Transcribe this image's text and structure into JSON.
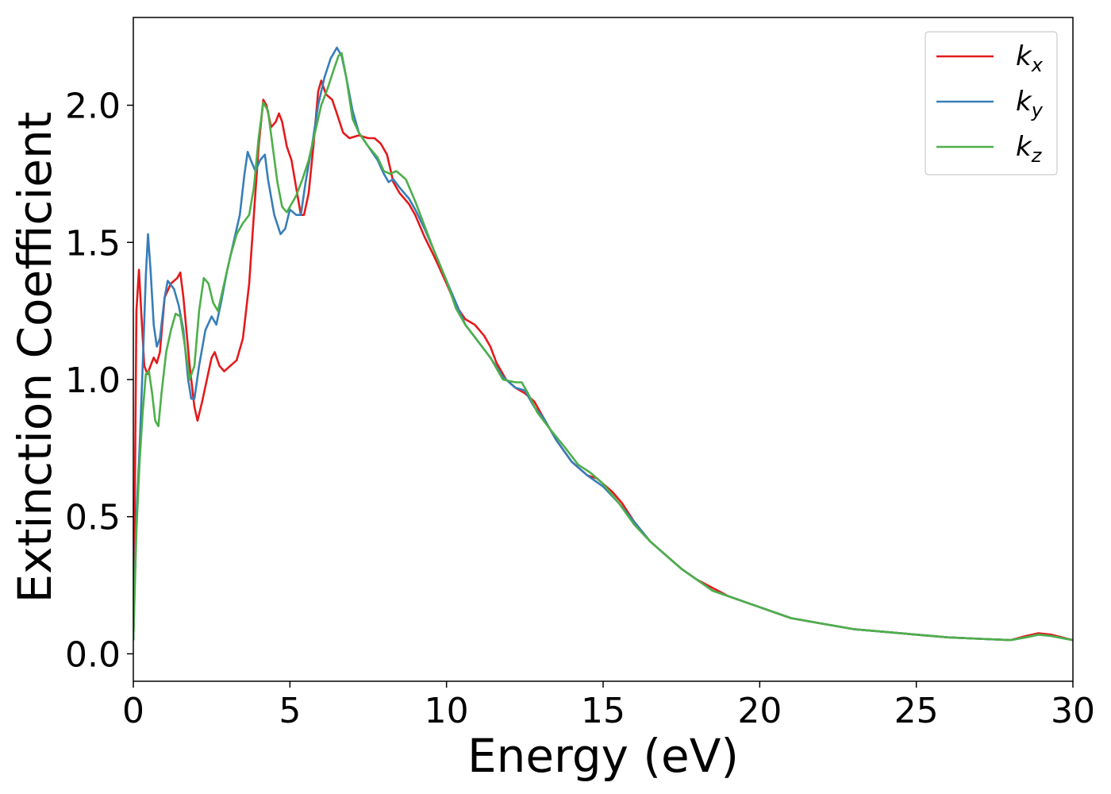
{
  "chart_data": {
    "type": "line",
    "title": "",
    "xlabel": "Energy (eV)",
    "ylabel": "Extinction Coefficient",
    "xlim": [
      0,
      30
    ],
    "ylim": [
      -0.1,
      2.32
    ],
    "xticks": [
      0,
      5,
      10,
      15,
      20,
      25,
      30
    ],
    "xtick_labels": [
      "0",
      "5",
      "10",
      "15",
      "20",
      "25",
      "30"
    ],
    "yticks": [
      0.0,
      0.5,
      1.0,
      1.5,
      2.0
    ],
    "ytick_labels": [
      "0.0",
      "0.5",
      "1.0",
      "1.5",
      "2.0"
    ],
    "grid": false,
    "legend_position": "top-right",
    "series": [
      {
        "name": "k",
        "subscript": "x",
        "color": "#e41a1c",
        "points": [
          [
            0,
            0.05
          ],
          [
            0.05,
            0.6
          ],
          [
            0.1,
            1.25
          ],
          [
            0.18,
            1.4
          ],
          [
            0.25,
            1.25
          ],
          [
            0.35,
            1.05
          ],
          [
            0.45,
            1.02
          ],
          [
            0.55,
            1.05
          ],
          [
            0.65,
            1.08
          ],
          [
            0.75,
            1.06
          ],
          [
            0.85,
            1.1
          ],
          [
            1.0,
            1.3
          ],
          [
            1.2,
            1.35
          ],
          [
            1.4,
            1.37
          ],
          [
            1.5,
            1.39
          ],
          [
            1.6,
            1.3
          ],
          [
            1.8,
            1.05
          ],
          [
            1.95,
            0.9
          ],
          [
            2.05,
            0.85
          ],
          [
            2.2,
            0.92
          ],
          [
            2.35,
            1.0
          ],
          [
            2.5,
            1.08
          ],
          [
            2.6,
            1.1
          ],
          [
            2.75,
            1.05
          ],
          [
            2.9,
            1.03
          ],
          [
            3.1,
            1.05
          ],
          [
            3.3,
            1.07
          ],
          [
            3.5,
            1.15
          ],
          [
            3.7,
            1.35
          ],
          [
            3.85,
            1.6
          ],
          [
            4.0,
            1.85
          ],
          [
            4.15,
            2.02
          ],
          [
            4.25,
            2.0
          ],
          [
            4.4,
            1.92
          ],
          [
            4.55,
            1.94
          ],
          [
            4.65,
            1.97
          ],
          [
            4.75,
            1.94
          ],
          [
            4.9,
            1.85
          ],
          [
            5.05,
            1.8
          ],
          [
            5.2,
            1.7
          ],
          [
            5.35,
            1.6
          ],
          [
            5.45,
            1.6
          ],
          [
            5.6,
            1.68
          ],
          [
            5.75,
            1.85
          ],
          [
            5.9,
            2.05
          ],
          [
            6.0,
            2.09
          ],
          [
            6.15,
            2.04
          ],
          [
            6.35,
            2.02
          ],
          [
            6.5,
            1.97
          ],
          [
            6.7,
            1.9
          ],
          [
            6.9,
            1.88
          ],
          [
            7.2,
            1.89
          ],
          [
            7.5,
            1.88
          ],
          [
            7.7,
            1.88
          ],
          [
            7.9,
            1.86
          ],
          [
            8.1,
            1.82
          ],
          [
            8.3,
            1.72
          ],
          [
            8.5,
            1.68
          ],
          [
            8.8,
            1.64
          ],
          [
            9.0,
            1.6
          ],
          [
            9.3,
            1.52
          ],
          [
            9.6,
            1.45
          ],
          [
            10.0,
            1.35
          ],
          [
            10.3,
            1.27
          ],
          [
            10.6,
            1.22
          ],
          [
            10.9,
            1.2
          ],
          [
            11.2,
            1.16
          ],
          [
            11.4,
            1.12
          ],
          [
            11.6,
            1.06
          ],
          [
            11.9,
            1.0
          ],
          [
            12.2,
            0.97
          ],
          [
            12.5,
            0.95
          ],
          [
            12.8,
            0.92
          ],
          [
            13.1,
            0.86
          ],
          [
            13.5,
            0.78
          ],
          [
            14.0,
            0.7
          ],
          [
            14.5,
            0.65
          ],
          [
            14.8,
            0.64
          ],
          [
            15.0,
            0.62
          ],
          [
            15.3,
            0.59
          ],
          [
            15.6,
            0.55
          ],
          [
            16.0,
            0.48
          ],
          [
            16.5,
            0.41
          ],
          [
            17.0,
            0.36
          ],
          [
            17.5,
            0.31
          ],
          [
            18.0,
            0.27
          ],
          [
            18.5,
            0.24
          ],
          [
            19.0,
            0.21
          ],
          [
            19.5,
            0.19
          ],
          [
            20.0,
            0.17
          ],
          [
            20.5,
            0.15
          ],
          [
            21.0,
            0.13
          ],
          [
            22.0,
            0.11
          ],
          [
            23.0,
            0.09
          ],
          [
            24.0,
            0.08
          ],
          [
            25.0,
            0.07
          ],
          [
            26.0,
            0.06
          ],
          [
            27.0,
            0.055
          ],
          [
            28.0,
            0.05
          ],
          [
            28.5,
            0.065
          ],
          [
            28.9,
            0.075
          ],
          [
            29.3,
            0.07
          ],
          [
            30.0,
            0.05
          ]
        ]
      },
      {
        "name": "k",
        "subscript": "y",
        "color": "#377eb8",
        "points": [
          [
            0,
            0.05
          ],
          [
            0.1,
            0.5
          ],
          [
            0.2,
            0.75
          ],
          [
            0.3,
            1.05
          ],
          [
            0.4,
            1.38
          ],
          [
            0.47,
            1.53
          ],
          [
            0.55,
            1.4
          ],
          [
            0.65,
            1.2
          ],
          [
            0.75,
            1.12
          ],
          [
            0.85,
            1.15
          ],
          [
            1.0,
            1.3
          ],
          [
            1.1,
            1.36
          ],
          [
            1.3,
            1.33
          ],
          [
            1.45,
            1.27
          ],
          [
            1.6,
            1.18
          ],
          [
            1.75,
            1.0
          ],
          [
            1.85,
            0.93
          ],
          [
            1.95,
            0.93
          ],
          [
            2.1,
            1.05
          ],
          [
            2.3,
            1.18
          ],
          [
            2.5,
            1.23
          ],
          [
            2.65,
            1.2
          ],
          [
            2.8,
            1.28
          ],
          [
            3.0,
            1.4
          ],
          [
            3.2,
            1.5
          ],
          [
            3.4,
            1.6
          ],
          [
            3.55,
            1.75
          ],
          [
            3.65,
            1.83
          ],
          [
            3.75,
            1.8
          ],
          [
            3.9,
            1.76
          ],
          [
            4.05,
            1.8
          ],
          [
            4.2,
            1.82
          ],
          [
            4.3,
            1.73
          ],
          [
            4.5,
            1.6
          ],
          [
            4.7,
            1.53
          ],
          [
            4.85,
            1.55
          ],
          [
            5.0,
            1.62
          ],
          [
            5.2,
            1.6
          ],
          [
            5.35,
            1.6
          ],
          [
            5.5,
            1.72
          ],
          [
            5.7,
            1.85
          ],
          [
            5.9,
            2.0
          ],
          [
            6.1,
            2.1
          ],
          [
            6.3,
            2.17
          ],
          [
            6.5,
            2.21
          ],
          [
            6.65,
            2.18
          ],
          [
            6.8,
            2.1
          ],
          [
            7.0,
            1.98
          ],
          [
            7.2,
            1.9
          ],
          [
            7.5,
            1.85
          ],
          [
            7.8,
            1.8
          ],
          [
            8.0,
            1.75
          ],
          [
            8.15,
            1.72
          ],
          [
            8.3,
            1.73
          ],
          [
            8.5,
            1.7
          ],
          [
            8.8,
            1.66
          ],
          [
            9.0,
            1.62
          ],
          [
            9.3,
            1.55
          ],
          [
            9.6,
            1.47
          ],
          [
            10.0,
            1.36
          ],
          [
            10.3,
            1.28
          ],
          [
            10.6,
            1.2
          ],
          [
            11.0,
            1.14
          ],
          [
            11.4,
            1.08
          ],
          [
            11.8,
            1.01
          ],
          [
            12.2,
            0.97
          ],
          [
            12.5,
            0.96
          ],
          [
            12.8,
            0.9
          ],
          [
            13.1,
            0.86
          ],
          [
            13.5,
            0.78
          ],
          [
            14.0,
            0.7
          ],
          [
            14.5,
            0.65
          ],
          [
            15.0,
            0.61
          ],
          [
            15.5,
            0.55
          ],
          [
            16.0,
            0.48
          ],
          [
            16.5,
            0.41
          ],
          [
            17.0,
            0.36
          ],
          [
            17.5,
            0.31
          ],
          [
            18.0,
            0.27
          ],
          [
            18.5,
            0.23
          ],
          [
            19.0,
            0.21
          ],
          [
            19.5,
            0.19
          ],
          [
            20.0,
            0.17
          ],
          [
            20.5,
            0.15
          ],
          [
            21.0,
            0.13
          ],
          [
            22.0,
            0.11
          ],
          [
            23.0,
            0.09
          ],
          [
            24.0,
            0.08
          ],
          [
            25.0,
            0.07
          ],
          [
            26.0,
            0.06
          ],
          [
            27.0,
            0.055
          ],
          [
            28.0,
            0.05
          ],
          [
            28.5,
            0.06
          ],
          [
            28.9,
            0.07
          ],
          [
            29.3,
            0.065
          ],
          [
            30.0,
            0.05
          ]
        ]
      },
      {
        "name": "k",
        "subscript": "z",
        "color": "#4daf4a",
        "points": [
          [
            0,
            0.05
          ],
          [
            0.1,
            0.45
          ],
          [
            0.2,
            0.7
          ],
          [
            0.3,
            0.88
          ],
          [
            0.4,
            1.02
          ],
          [
            0.5,
            1.03
          ],
          [
            0.6,
            0.95
          ],
          [
            0.7,
            0.85
          ],
          [
            0.8,
            0.83
          ],
          [
            0.9,
            0.95
          ],
          [
            1.05,
            1.1
          ],
          [
            1.2,
            1.18
          ],
          [
            1.35,
            1.24
          ],
          [
            1.5,
            1.23
          ],
          [
            1.65,
            1.12
          ],
          [
            1.8,
            1.0
          ],
          [
            1.95,
            1.05
          ],
          [
            2.1,
            1.25
          ],
          [
            2.25,
            1.37
          ],
          [
            2.4,
            1.35
          ],
          [
            2.55,
            1.28
          ],
          [
            2.7,
            1.25
          ],
          [
            2.9,
            1.35
          ],
          [
            3.1,
            1.45
          ],
          [
            3.3,
            1.53
          ],
          [
            3.5,
            1.57
          ],
          [
            3.7,
            1.6
          ],
          [
            3.85,
            1.7
          ],
          [
            4.0,
            1.88
          ],
          [
            4.15,
            2.01
          ],
          [
            4.3,
            1.98
          ],
          [
            4.45,
            1.85
          ],
          [
            4.6,
            1.72
          ],
          [
            4.75,
            1.63
          ],
          [
            4.9,
            1.61
          ],
          [
            5.05,
            1.64
          ],
          [
            5.2,
            1.67
          ],
          [
            5.4,
            1.73
          ],
          [
            5.6,
            1.8
          ],
          [
            5.8,
            1.9
          ],
          [
            6.0,
            2.0
          ],
          [
            6.2,
            2.06
          ],
          [
            6.4,
            2.13
          ],
          [
            6.55,
            2.18
          ],
          [
            6.65,
            2.19
          ],
          [
            6.8,
            2.1
          ],
          [
            7.0,
            1.95
          ],
          [
            7.2,
            1.9
          ],
          [
            7.5,
            1.85
          ],
          [
            7.8,
            1.81
          ],
          [
            8.0,
            1.76
          ],
          [
            8.2,
            1.75
          ],
          [
            8.4,
            1.76
          ],
          [
            8.7,
            1.73
          ],
          [
            9.0,
            1.65
          ],
          [
            9.3,
            1.56
          ],
          [
            9.6,
            1.47
          ],
          [
            10.0,
            1.36
          ],
          [
            10.3,
            1.26
          ],
          [
            10.6,
            1.2
          ],
          [
            11.0,
            1.14
          ],
          [
            11.4,
            1.08
          ],
          [
            11.8,
            1.0
          ],
          [
            12.2,
            0.99
          ],
          [
            12.4,
            0.99
          ],
          [
            12.6,
            0.95
          ],
          [
            12.9,
            0.88
          ],
          [
            13.3,
            0.82
          ],
          [
            13.8,
            0.75
          ],
          [
            14.2,
            0.69
          ],
          [
            14.6,
            0.66
          ],
          [
            15.0,
            0.62
          ],
          [
            15.5,
            0.55
          ],
          [
            16.0,
            0.47
          ],
          [
            16.5,
            0.41
          ],
          [
            17.0,
            0.36
          ],
          [
            17.5,
            0.31
          ],
          [
            18.0,
            0.27
          ],
          [
            18.5,
            0.23
          ],
          [
            19.0,
            0.21
          ],
          [
            19.5,
            0.19
          ],
          [
            20.0,
            0.17
          ],
          [
            20.5,
            0.15
          ],
          [
            21.0,
            0.13
          ],
          [
            22.0,
            0.11
          ],
          [
            23.0,
            0.09
          ],
          [
            24.0,
            0.08
          ],
          [
            25.0,
            0.07
          ],
          [
            26.0,
            0.06
          ],
          [
            27.0,
            0.055
          ],
          [
            28.0,
            0.05
          ],
          [
            28.5,
            0.06
          ],
          [
            28.9,
            0.07
          ],
          [
            29.3,
            0.065
          ],
          [
            30.0,
            0.05
          ]
        ]
      }
    ]
  }
}
